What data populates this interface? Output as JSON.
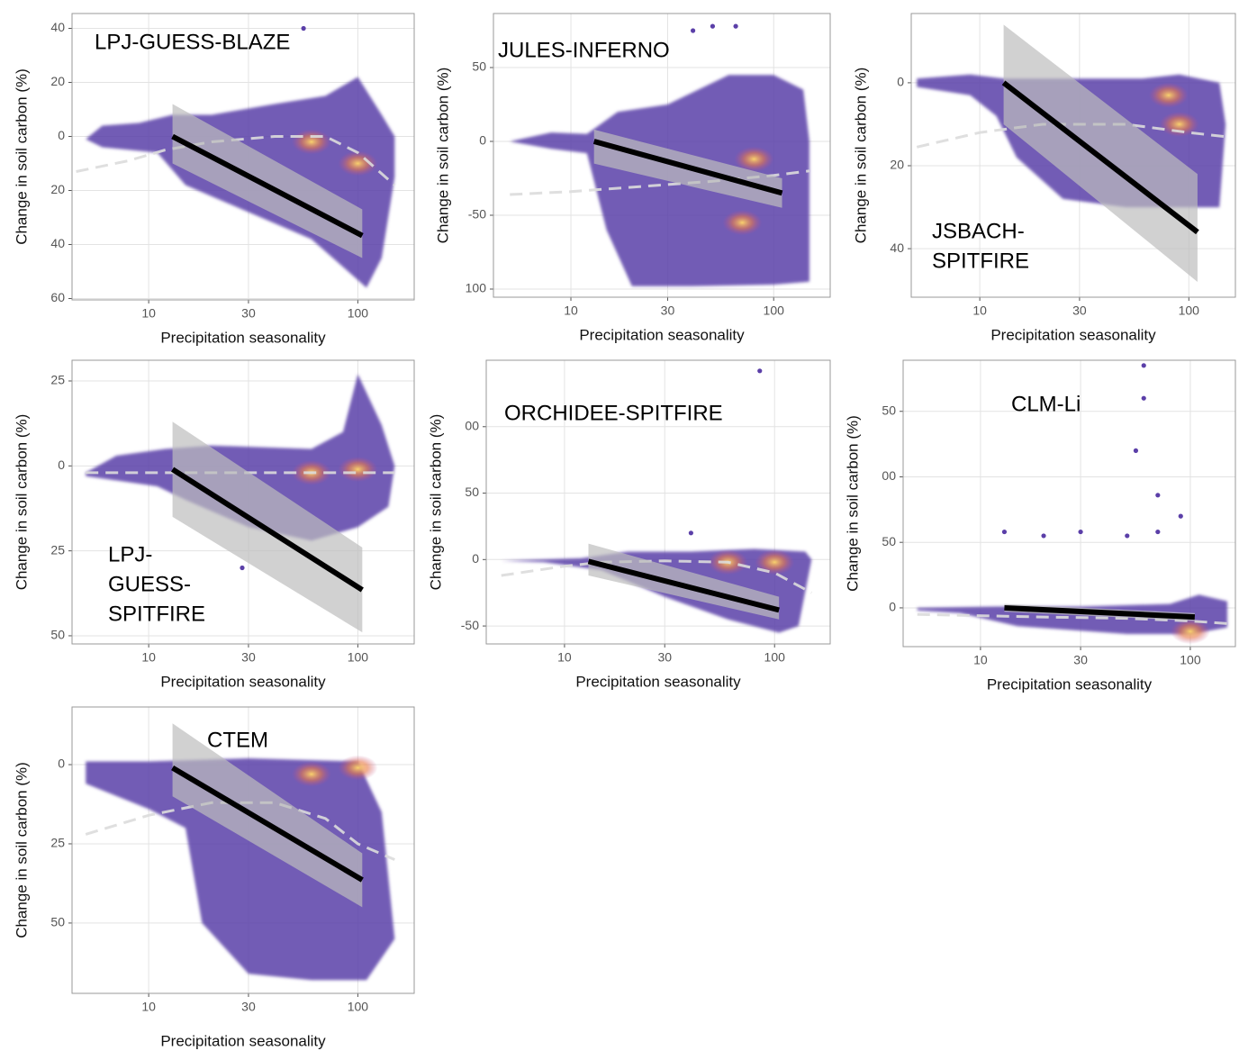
{
  "chart_data": [
    {
      "type": "hexbin",
      "title_lines": [
        "LPJ-GUESS-BLAZE"
      ],
      "x_label": "Precipitation seasonality",
      "y_label": "Change in soil carbon (%)",
      "log_x": true,
      "grid": true,
      "xlim": [
        4.3,
        186
      ],
      "xticks": [
        10,
        30,
        100
      ],
      "ylim": [
        -60.5,
        45.5
      ],
      "yticks": [
        40,
        20,
        0,
        {
          "value": -20,
          "label": "20"
        },
        {
          "value": -40,
          "label": "40"
        },
        {
          "value": -60,
          "label": "60"
        }
      ],
      "cloud": {
        "color": "#5b3fa8",
        "x": [
          5,
          6,
          9,
          13,
          20,
          40,
          70,
          100,
          130,
          150,
          150,
          130,
          110,
          90,
          60,
          30,
          15,
          11,
          6
        ],
        "y": [
          -1,
          4,
          5,
          8,
          8,
          12,
          15,
          22,
          8,
          0,
          -15,
          -45,
          -56,
          -50,
          -38,
          -28,
          -18,
          -6,
          -4
        ]
      },
      "hotspots": {
        "color": "#f5a63c",
        "x": [
          60,
          100
        ],
        "y": [
          -2,
          -10
        ]
      },
      "outliers": {
        "x": [
          55
        ],
        "y": [
          40
        ]
      },
      "band": {
        "color": "#bdbdbd",
        "x": [
          13,
          105
        ],
        "upper": [
          12,
          -27
        ],
        "lower": [
          -10,
          -45
        ]
      },
      "loess": {
        "color": "#dcdcdc",
        "x": [
          4.5,
          8,
          12,
          20,
          40,
          70,
          100,
          150
        ],
        "y": [
          -13,
          -9,
          -5,
          -2,
          0,
          0,
          -6,
          -18
        ]
      },
      "regression": {
        "color": "#000000",
        "x": [
          13,
          105
        ],
        "y": [
          0,
          -36.7
        ]
      }
    },
    {
      "type": "hexbin",
      "title_lines": [
        "JULES-INFERNO"
      ],
      "x_label": "Precipitation seasonality",
      "y_label": "Change in soil carbon (%)",
      "log_x": true,
      "grid": true,
      "xlim": [
        4.15,
        190
      ],
      "xticks": [
        10,
        30,
        100
      ],
      "ylim": [
        -105.5,
        86.6
      ],
      "yticks": [
        50,
        0,
        -50,
        {
          "value": -100,
          "label": "100"
        }
      ],
      "cloud": {
        "color": "#5b3fa8",
        "x": [
          5,
          8,
          12,
          17,
          30,
          60,
          100,
          140,
          150,
          150,
          100,
          40,
          20,
          15,
          12,
          8
        ],
        "y": [
          0,
          6,
          5,
          20,
          25,
          45,
          45,
          35,
          0,
          -95,
          -97,
          -98,
          -98,
          -60,
          -8,
          -5
        ]
      },
      "hotspots": {
        "color": "#f5a63c",
        "x": [
          80,
          70
        ],
        "y": [
          -12,
          -55
        ]
      },
      "outliers": {
        "x": [
          40,
          50,
          65
        ],
        "y": [
          75,
          78,
          78
        ]
      },
      "band": {
        "color": "#bdbdbd",
        "x": [
          13,
          110
        ],
        "upper": [
          8,
          -25
        ],
        "lower": [
          -15,
          -45
        ]
      },
      "loess": {
        "color": "#dcdcdc",
        "x": [
          5,
          10,
          20,
          50,
          100,
          150
        ],
        "y": [
          -36,
          -34,
          -31,
          -27,
          -23,
          -20
        ]
      },
      "regression": {
        "color": "#000000",
        "x": [
          13,
          110
        ],
        "y": [
          0,
          -35
        ]
      }
    },
    {
      "type": "hexbin",
      "title_lines": [
        "JSBACH-",
        "SPITFIRE"
      ],
      "x_label": "Precipitation seasonality",
      "y_label": "Change in soil carbon (%)",
      "log_x": true,
      "grid": true,
      "xlim": [
        4.7,
        167
      ],
      "xticks": [
        10,
        30,
        100
      ],
      "ylim": [
        -51.7,
        16.7
      ],
      "yticks": [
        0,
        {
          "value": -20,
          "label": "20"
        },
        {
          "value": -40,
          "label": "40"
        }
      ],
      "cloud": {
        "color": "#5b3fa8",
        "x": [
          5,
          9,
          13,
          20,
          60,
          90,
          140,
          150,
          140,
          90,
          50,
          25,
          15,
          12,
          9,
          5
        ],
        "y": [
          1,
          2,
          1,
          1,
          1,
          2,
          0,
          -10,
          -30,
          -30,
          -30,
          -28,
          -18,
          -8,
          -3,
          -1
        ]
      },
      "hotspots": {
        "color": "#f5a63c",
        "x": [
          80,
          90
        ],
        "y": [
          -3,
          -10
        ]
      },
      "outliers": {
        "x": [],
        "y": []
      },
      "band": {
        "color": "#bdbdbd",
        "x": [
          13,
          110
        ],
        "upper": [
          14,
          -22
        ],
        "lower": [
          -10,
          -48
        ]
      },
      "loess": {
        "color": "#dcdcdc",
        "x": [
          5,
          10,
          20,
          50,
          100,
          150
        ],
        "y": [
          -15.5,
          -12,
          -10,
          -10,
          -12,
          -13
        ]
      },
      "regression": {
        "color": "#000000",
        "x": [
          13,
          110
        ],
        "y": [
          0,
          -36
        ]
      }
    },
    {
      "type": "hexbin",
      "title_lines": [
        "LPJ-",
        "GUESS-",
        "SPITFIRE"
      ],
      "x_label": "Precipitation seasonality",
      "y_label": "Change in soil carbon (%)",
      "log_x": true,
      "grid": true,
      "xlim": [
        4.3,
        186
      ],
      "xticks": [
        10,
        30,
        100
      ],
      "ylim": [
        -52.4,
        31.1
      ],
      "yticks": [
        25,
        0,
        {
          "value": -25,
          "label": "25"
        },
        {
          "value": -50,
          "label": "50"
        }
      ],
      "cloud": {
        "color": "#5b3fa8",
        "x": [
          5,
          7,
          12,
          20,
          60,
          85,
          100,
          130,
          150,
          140,
          100,
          60,
          30,
          15,
          11,
          5
        ],
        "y": [
          -2,
          3,
          5,
          6,
          5,
          10,
          27,
          12,
          0,
          -12,
          -18,
          -22,
          -18,
          -10,
          -6,
          -3
        ]
      },
      "hotspots": {
        "color": "#f5a63c",
        "x": [
          60,
          100
        ],
        "y": [
          -2,
          -1
        ]
      },
      "outliers": {
        "x": [
          28
        ],
        "y": [
          -30
        ]
      },
      "band": {
        "color": "#bdbdbd",
        "x": [
          13,
          105
        ],
        "upper": [
          13,
          -24
        ],
        "lower": [
          -15,
          -49
        ]
      },
      "loess": {
        "color": "#dcdcdc",
        "x": [
          5,
          20,
          50,
          100,
          150
        ],
        "y": [
          -2,
          -2,
          -2,
          -2,
          -2
        ]
      },
      "regression": {
        "color": "#000000",
        "x": [
          13,
          105
        ],
        "y": [
          -1,
          -36.5
        ]
      }
    },
    {
      "type": "hexbin",
      "title_lines": [
        "ORCHIDEE-SPITFIRE"
      ],
      "x_label": "Precipitation seasonality",
      "y_label": "Change in soil carbon (%)",
      "log_x": true,
      "grid": true,
      "xlim": [
        4.24,
        184
      ],
      "xticks": [
        10,
        30,
        100
      ],
      "ylim": [
        -63.5,
        150
      ],
      "yticks": [
        {
          "value": 100,
          "label": "00"
        },
        50,
        0,
        -50
      ],
      "cloud": {
        "color": "#5b3fa8",
        "x": [
          5,
          12,
          20,
          40,
          80,
          140,
          150,
          130,
          105,
          60,
          30,
          15,
          8
        ],
        "y": [
          -1,
          1,
          6,
          6,
          8,
          6,
          0,
          -50,
          -55,
          -45,
          -28,
          -8,
          -2
        ]
      },
      "hotspots": {
        "color": "#f5a63c",
        "x": [
          60,
          100
        ],
        "y": [
          -2,
          -2
        ]
      },
      "outliers": {
        "x": [
          85,
          40
        ],
        "y": [
          142,
          20
        ]
      },
      "band": {
        "color": "#bdbdbd",
        "x": [
          13,
          105
        ],
        "upper": [
          12,
          -28
        ],
        "lower": [
          -12,
          -45
        ]
      },
      "loess": {
        "color": "#dcdcdc",
        "x": [
          5,
          10,
          15,
          30,
          60,
          100,
          150
        ],
        "y": [
          -12,
          -5,
          -2,
          -1,
          -2,
          -10,
          -25
        ]
      },
      "regression": {
        "color": "#000000",
        "x": [
          13,
          105
        ],
        "y": [
          -1.4,
          -38
        ]
      }
    },
    {
      "type": "hexbin",
      "title_lines": [
        "CLM-Li"
      ],
      "x_label": "Precipitation seasonality",
      "y_label": "Change in soil carbon (%)",
      "log_x": true,
      "grid": true,
      "xlim": [
        4.28,
        164
      ],
      "xticks": [
        10,
        30,
        100
      ],
      "ylim": [
        -29.6,
        189
      ],
      "yticks": [
        {
          "value": 150,
          "label": "50"
        },
        {
          "value": 100,
          "label": "00"
        },
        50,
        0
      ],
      "cloud": {
        "color": "#5b3fa8",
        "x": [
          5,
          12,
          30,
          80,
          110,
          150,
          150,
          100,
          50,
          15,
          8,
          5
        ],
        "y": [
          0,
          1,
          1,
          3,
          10,
          5,
          -15,
          -20,
          -20,
          -14,
          -4,
          -2
        ]
      },
      "hotspots": {
        "color": "#f5a63c",
        "x": [
          100
        ],
        "y": [
          -18
        ]
      },
      "outliers": {
        "x": [
          60,
          60,
          55,
          70,
          13,
          20,
          30,
          50,
          70,
          90
        ],
        "y": [
          185,
          160,
          120,
          86,
          58,
          55,
          58,
          55,
          58,
          70
        ]
      },
      "band": {
        "color": "#bdbdbd",
        "x": [
          13,
          105
        ],
        "upper": [
          3,
          -4
        ],
        "lower": [
          -3,
          -10
        ]
      },
      "loess": {
        "color": "#dcdcdc",
        "x": [
          5,
          20,
          50,
          100,
          150
        ],
        "y": [
          -5,
          -7,
          -8,
          -10,
          -12
        ]
      },
      "regression": {
        "color": "#000000",
        "x": [
          13,
          105
        ],
        "y": [
          0,
          -7
        ]
      }
    },
    {
      "type": "hexbin",
      "title_lines": [
        "CTEM"
      ],
      "x_label": "Precipitation seasonality",
      "y_label": "Change in soil carbon (%)",
      "log_x": true,
      "grid": true,
      "xlim": [
        4.3,
        186
      ],
      "xticks": [
        10,
        30,
        100
      ],
      "ylim": [
        -72.2,
        18.2
      ],
      "yticks": [
        0,
        {
          "value": -25,
          "label": "25"
        },
        {
          "value": -50,
          "label": "50"
        }
      ],
      "cloud": {
        "color": "#5b3fa8",
        "x": [
          5,
          10,
          30,
          100,
          130,
          150,
          110,
          60,
          30,
          18,
          15,
          10,
          5
        ],
        "y": [
          1,
          1,
          2,
          1,
          -15,
          -55,
          -68,
          -68,
          -66,
          -50,
          -20,
          -14,
          -6
        ]
      },
      "hotspots": {
        "color": "#f5a63c",
        "x": [
          60,
          100
        ],
        "y": [
          -3,
          -1
        ]
      },
      "outliers": {
        "x": [],
        "y": []
      },
      "band": {
        "color": "#bdbdbd",
        "x": [
          13,
          105
        ],
        "upper": [
          13,
          -28
        ],
        "lower": [
          -10,
          -45
        ]
      },
      "loess": {
        "color": "#dcdcdc",
        "x": [
          5,
          10,
          20,
          40,
          70,
          100,
          150
        ],
        "y": [
          -22,
          -16,
          -12,
          -12,
          -17,
          -25,
          -30
        ]
      },
      "regression": {
        "color": "#000000",
        "x": [
          13,
          105
        ],
        "y": [
          -1,
          -36.4
        ]
      }
    }
  ]
}
